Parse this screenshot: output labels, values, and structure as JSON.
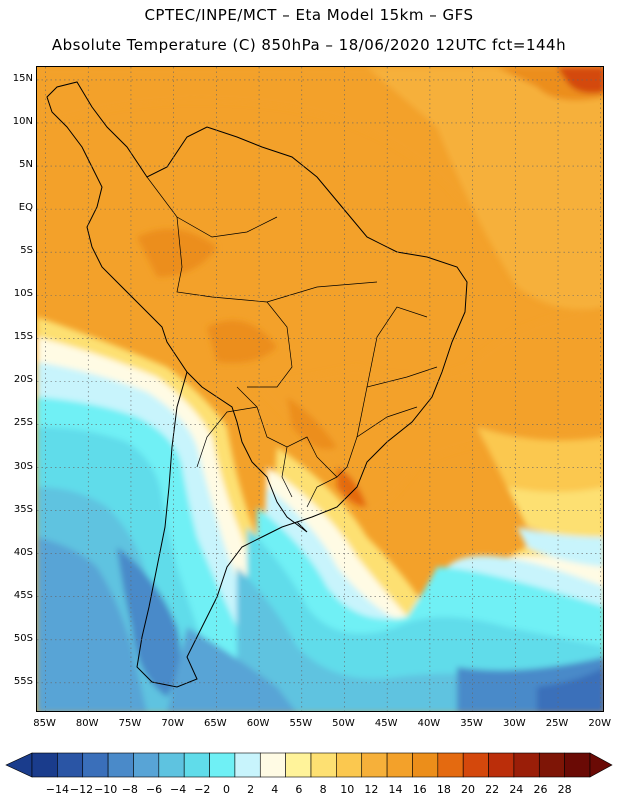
{
  "header": {
    "line1": "CPTEC/INPE/MCT –  Eta Model 15km – GFS",
    "line2": "Absolute Temperature (C) 850hPa – 18/06/2020 12UTC fct=144h"
  },
  "axes": {
    "lat_labels": [
      "15N",
      "10N",
      "5N",
      "EQ",
      "5S",
      "10S",
      "15S",
      "20S",
      "25S",
      "30S",
      "35S",
      "40S",
      "45S",
      "50S",
      "55S"
    ],
    "lon_labels": [
      "85W",
      "80W",
      "75W",
      "70W",
      "65W",
      "60W",
      "55W",
      "50W",
      "45W",
      "40W",
      "35W",
      "30W",
      "25W",
      "20W"
    ],
    "lat_range": [
      16.5,
      -58.5
    ],
    "lon_range": [
      -86,
      -19.5
    ],
    "grid": "dotted"
  },
  "colorbar": {
    "labels": [
      "-14",
      "-12",
      "-10",
      "-8",
      "-6",
      "-4",
      "-2",
      "0",
      "2",
      "4",
      "6",
      "8",
      "10",
      "12",
      "14",
      "16",
      "18",
      "20",
      "22",
      "24",
      "26",
      "28"
    ],
    "colors": [
      "#1a3c8c",
      "#2a55a5",
      "#3a6fba",
      "#4a8ac9",
      "#58a4d6",
      "#5ec3e0",
      "#60dcea",
      "#6ff0f5",
      "#c8f4fc",
      "#fffbe4",
      "#fff39a",
      "#fde072",
      "#fbc84f",
      "#f6b03a",
      "#f3a12a",
      "#ec8e1a",
      "#e46a10",
      "#d4480c",
      "#bb2e0a",
      "#9a1e08",
      "#7e1506",
      "#6a0a05"
    ],
    "under_color": "#1a3c8c",
    "over_color": "#6a0a05"
  }
}
